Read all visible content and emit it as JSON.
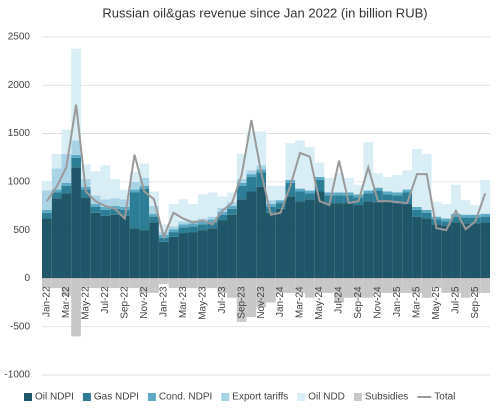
{
  "chart_data": {
    "type": "stacked-bar-line",
    "title": "Russian oil&gas revenue since Jan 2022 (in billion RUB)",
    "categories": [
      "Jan-22",
      null,
      "Mar-22",
      null,
      "May-22",
      null,
      "Jul-22",
      null,
      "Sep-22",
      null,
      "Nov-22",
      null,
      "Jan-23",
      null,
      "Mar-23",
      null,
      "May-23",
      null,
      "Jul-23",
      null,
      "Sep-23",
      null,
      "Nov-23",
      null,
      "Jan-24",
      null,
      "Mar-24",
      null,
      "May-24",
      null,
      "Jul-24",
      null,
      "Sep-24",
      null,
      "Nov-24",
      null,
      "Jan-25",
      null,
      "Mar-25",
      null,
      "May-25",
      null,
      "Jul-25",
      null,
      "Sep-25",
      null
    ],
    "series": [
      {
        "name": "Oil NDPI",
        "color": "#1f5768",
        "values": [
          620,
          830,
          880,
          1150,
          840,
          680,
          650,
          660,
          650,
          520,
          500,
          580,
          380,
          430,
          470,
          480,
          500,
          520,
          600,
          660,
          820,
          900,
          950,
          680,
          720,
          850,
          800,
          820,
          900,
          780,
          780,
          780,
          760,
          800,
          790,
          800,
          780,
          770,
          640,
          620,
          560,
          550,
          580,
          570,
          570,
          580
        ]
      },
      {
        "name": "Gas NDPI",
        "color": "#2e7d96",
        "values": [
          60,
          60,
          80,
          100,
          80,
          60,
          60,
          60,
          60,
          370,
          430,
          60,
          40,
          50,
          60,
          60,
          60,
          60,
          60,
          60,
          140,
          150,
          150,
          60,
          60,
          140,
          100,
          60,
          120,
          80,
          80,
          80,
          80,
          80,
          120,
          70,
          80,
          120,
          70,
          60,
          50,
          40,
          60,
          60,
          60,
          60
        ]
      },
      {
        "name": "Cond. NDPI",
        "color": "#5ba9c4",
        "values": [
          30,
          30,
          30,
          30,
          30,
          30,
          30,
          30,
          30,
          30,
          30,
          30,
          30,
          30,
          30,
          30,
          30,
          30,
          30,
          30,
          30,
          30,
          30,
          30,
          30,
          30,
          30,
          30,
          30,
          30,
          30,
          30,
          30,
          30,
          30,
          30,
          30,
          30,
          30,
          30,
          30,
          30,
          30,
          30,
          30,
          30
        ]
      },
      {
        "name": "Export tariffs",
        "color": "#a9d4e6",
        "values": [
          200,
          220,
          300,
          150,
          80,
          90,
          80,
          80,
          80,
          80,
          80,
          80,
          30,
          30,
          30,
          30,
          30,
          30,
          40,
          40,
          40,
          40,
          40,
          40,
          0,
          0,
          0,
          0,
          0,
          0,
          0,
          0,
          0,
          0,
          0,
          0,
          0,
          0,
          0,
          0,
          0,
          0,
          0,
          0,
          0,
          0
        ]
      },
      {
        "name": "Oil NDD",
        "color": "#d9edf4",
        "values": [
          100,
          150,
          250,
          950,
          150,
          250,
          350,
          200,
          100,
          100,
          150,
          150,
          80,
          230,
          230,
          170,
          250,
          250,
          120,
          100,
          260,
          400,
          350,
          150,
          150,
          380,
          500,
          450,
          150,
          150,
          200,
          150,
          100,
          500,
          150,
          150,
          180,
          200,
          600,
          580,
          150,
          150,
          300,
          150,
          100,
          350
        ]
      },
      {
        "name": "Subsidies",
        "color": "#c8c8c8",
        "values": [
          -100,
          -100,
          -180,
          -600,
          -100,
          -100,
          -100,
          -100,
          -100,
          -100,
          -150,
          -150,
          -60,
          -100,
          -100,
          -100,
          -100,
          -100,
          -150,
          -200,
          -450,
          -400,
          -300,
          -250,
          -150,
          -150,
          -150,
          -200,
          -150,
          -150,
          -250,
          -200,
          -200,
          -200,
          -150,
          -150,
          -150,
          -150,
          -150,
          -200,
          -100,
          -150,
          -150,
          -200,
          -150,
          -150
        ]
      },
      {
        "name": "Total",
        "color": "#9a9a9a",
        "line": true,
        "values": [
          800,
          950,
          1150,
          1800,
          900,
          800,
          750,
          720,
          620,
          1280,
          900,
          820,
          430,
          680,
          620,
          580,
          600,
          560,
          700,
          780,
          1070,
          1640,
          1100,
          660,
          680,
          960,
          1300,
          1260,
          800,
          760,
          1220,
          780,
          800,
          1150,
          800,
          800,
          790,
          780,
          1080,
          1080,
          520,
          500,
          700,
          510,
          590,
          880
        ]
      }
    ],
    "ylim": [
      -1000,
      2500
    ],
    "yticks": [
      -1000,
      -500,
      0,
      500,
      1000,
      1500,
      2000,
      2500
    ],
    "grid": true
  }
}
